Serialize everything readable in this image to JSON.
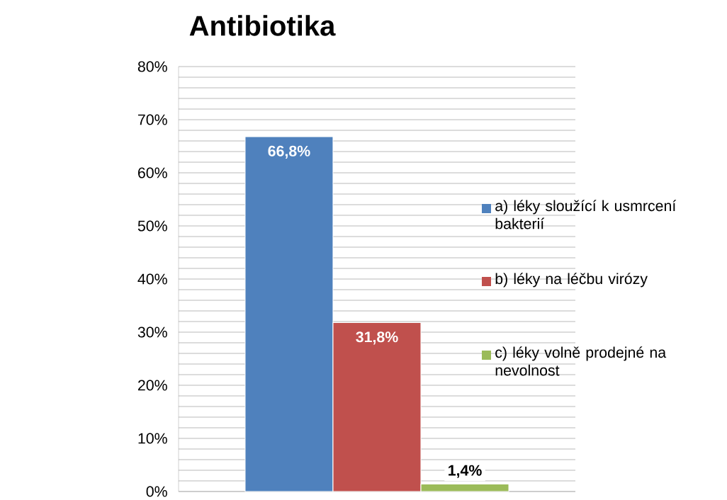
{
  "chart_data": {
    "type": "bar",
    "title": "Antibiotika",
    "categories": [
      null
    ],
    "series": [
      {
        "name": "a) léky sloužící k usmrcení bakterií",
        "color": "#4f81bd",
        "values": [
          66.8
        ],
        "value_labels": [
          "66,8%"
        ]
      },
      {
        "name": "b) léky na léčbu virózy",
        "color": "#c0504d",
        "values": [
          31.8
        ],
        "value_labels": [
          "31,8%"
        ]
      },
      {
        "name": "c) léky volně prodejné na nevolnost",
        "color": "#9bbb59",
        "values": [
          1.4
        ],
        "value_labels": [
          "1,4%"
        ]
      }
    ],
    "ylim": [
      0,
      80
    ],
    "yticks": [
      {
        "value": 0,
        "label": "0%"
      },
      {
        "value": 2,
        "label": null
      },
      {
        "value": 4,
        "label": null
      },
      {
        "value": 6,
        "label": null
      },
      {
        "value": 8,
        "label": null
      },
      {
        "value": 10,
        "label": "10%"
      },
      {
        "value": 12,
        "label": null
      },
      {
        "value": 14,
        "label": null
      },
      {
        "value": 16,
        "label": null
      },
      {
        "value": 18,
        "label": null
      },
      {
        "value": 20,
        "label": "20%"
      },
      {
        "value": 22,
        "label": null
      },
      {
        "value": 24,
        "label": null
      },
      {
        "value": 26,
        "label": null
      },
      {
        "value": 28,
        "label": null
      },
      {
        "value": 30,
        "label": "30%"
      },
      {
        "value": 32,
        "label": null
      },
      {
        "value": 34,
        "label": null
      },
      {
        "value": 36,
        "label": null
      },
      {
        "value": 38,
        "label": null
      },
      {
        "value": 40,
        "label": "40%"
      },
      {
        "value": 42,
        "label": null
      },
      {
        "value": 44,
        "label": null
      },
      {
        "value": 46,
        "label": null
      },
      {
        "value": 48,
        "label": null
      },
      {
        "value": 50,
        "label": "50%"
      },
      {
        "value": 52,
        "label": null
      },
      {
        "value": 54,
        "label": null
      },
      {
        "value": 56,
        "label": null
      },
      {
        "value": 58,
        "label": null
      },
      {
        "value": 60,
        "label": "60%"
      },
      {
        "value": 62,
        "label": null
      },
      {
        "value": 64,
        "label": null
      },
      {
        "value": 66,
        "label": null
      },
      {
        "value": 68,
        "label": null
      },
      {
        "value": 70,
        "label": "70%"
      },
      {
        "value": 72,
        "label": null
      },
      {
        "value": 74,
        "label": null
      },
      {
        "value": 76,
        "label": null
      },
      {
        "value": 78,
        "label": null
      },
      {
        "value": 80,
        "label": "80%"
      }
    ],
    "grid": "y",
    "legend": "right"
  }
}
